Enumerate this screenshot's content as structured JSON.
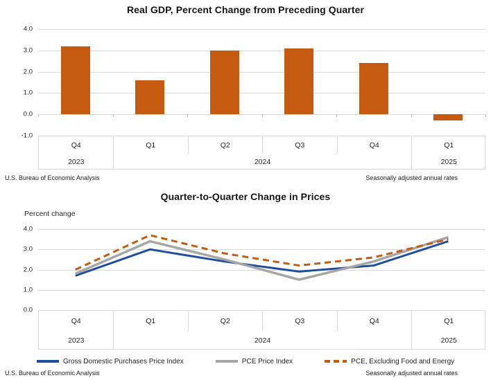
{
  "colors": {
    "bar_orange": "#c55a11",
    "line_blue": "#1f4e9e",
    "line_gray": "#a6a6a6",
    "line_orange_dashed": "#c55a11",
    "gridline": "#d9d9d9",
    "title_text": "#151519"
  },
  "chart_data": [
    {
      "id": "real-gdp",
      "type": "bar",
      "title": "Real GDP, Percent Change from Preceding Quarter",
      "categories": [
        "Q4",
        "Q1",
        "Q2",
        "Q3",
        "Q4",
        "Q1"
      ],
      "year_groups": [
        {
          "label": "2023",
          "span": 1
        },
        {
          "label": "2024",
          "span": 4
        },
        {
          "label": "2025",
          "span": 1
        }
      ],
      "values": [
        3.2,
        1.6,
        3.0,
        3.1,
        2.4,
        -0.3
      ],
      "ylim": [
        -1.0,
        4.0
      ],
      "yticks": [
        "4.0",
        "3.0",
        "2.0",
        "1.0",
        "0.0",
        "-1.0"
      ],
      "grid": "horizontal",
      "bar_color": "#c55a11",
      "source_left": "U.S. Bureau of Economic Analysis",
      "source_right": "Seasonally adjusted annual rates"
    },
    {
      "id": "price-change",
      "type": "line",
      "title": "Quarter-to-Quarter Change in Prices",
      "ylabel": "Percent change",
      "categories": [
        "Q4",
        "Q1",
        "Q2",
        "Q3",
        "Q4",
        "Q1"
      ],
      "year_groups": [
        {
          "label": "2023",
          "span": 1
        },
        {
          "label": "2024",
          "span": 4
        },
        {
          "label": "2025",
          "span": 1
        }
      ],
      "series": [
        {
          "name": "Gross Domestic Purchases Price Index",
          "color": "#1f4e9e",
          "style": "solid",
          "values": [
            1.7,
            3.0,
            2.4,
            1.9,
            2.2,
            3.4
          ]
        },
        {
          "name": "PCE Price Index",
          "color": "#a6a6a6",
          "style": "solid",
          "values": [
            1.8,
            3.4,
            2.5,
            1.5,
            2.4,
            3.6
          ]
        },
        {
          "name": "PCE, Excluding Food and Energy",
          "color": "#c55a11",
          "style": "dashed",
          "values": [
            2.0,
            3.7,
            2.8,
            2.2,
            2.6,
            3.5
          ]
        }
      ],
      "ylim": [
        0.0,
        4.0
      ],
      "yticks": [
        "4.0",
        "3.0",
        "2.0",
        "1.0",
        "0.0"
      ],
      "grid": "horizontal",
      "legend_position": "bottom",
      "source_left": "U.S. Bureau of Economic Analysis",
      "source_right": "Seasonally adjusted annual rates"
    }
  ]
}
